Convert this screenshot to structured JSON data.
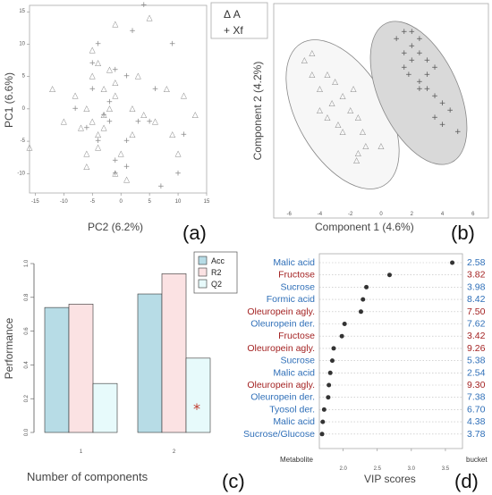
{
  "chart_data": [
    {
      "panel": "(a)",
      "type": "scatter",
      "xlabel": "PC2 (6.2%)",
      "ylabel": "PC1 (6.6%)",
      "xlim": [
        -16,
        15
      ],
      "ylim": [
        -13,
        16
      ],
      "xticks": [
        "-15",
        "-10",
        "-5",
        "0",
        "5",
        "10",
        "15"
      ],
      "yticks": [
        "15",
        "10",
        "5",
        "0",
        "-5",
        "-10"
      ],
      "legend": [
        "Δ A",
        "+ Xf"
      ],
      "series": [
        {
          "name": "A",
          "marker": "△",
          "points": [
            [
              -1,
              13
            ],
            [
              5,
              14
            ],
            [
              -5,
              9
            ],
            [
              -4,
              7
            ],
            [
              -5,
              5
            ],
            [
              -2,
              6
            ],
            [
              3,
              5
            ],
            [
              -3,
              3
            ],
            [
              -12,
              3
            ],
            [
              -8,
              2
            ],
            [
              -1,
              2
            ],
            [
              -6,
              0
            ],
            [
              -2,
              0
            ],
            [
              4,
              -1
            ],
            [
              -7,
              -3
            ],
            [
              -3,
              -3
            ],
            [
              2,
              -4
            ],
            [
              9,
              -4
            ],
            [
              -4,
              -6
            ],
            [
              -6,
              -7
            ],
            [
              0,
              -7
            ],
            [
              10,
              -7
            ],
            [
              -16,
              -6
            ],
            [
              -6,
              -9
            ],
            [
              -10,
              -2
            ],
            [
              -1,
              -10
            ],
            [
              1,
              -11
            ],
            [
              6,
              -2
            ],
            [
              11,
              2
            ],
            [
              -3,
              -1
            ],
            [
              13,
              -1
            ],
            [
              -4,
              -4
            ],
            [
              -5,
              -2
            ],
            [
              2,
              0
            ],
            [
              -1,
              4
            ],
            [
              8,
              3
            ]
          ]
        },
        {
          "name": "Xf",
          "marker": "+",
          "points": [
            [
              4,
              16
            ],
            [
              2,
              12
            ],
            [
              9,
              10
            ],
            [
              -4,
              10
            ],
            [
              -5,
              7
            ],
            [
              -1,
              6
            ],
            [
              1,
              5
            ],
            [
              -5,
              3
            ],
            [
              -2,
              1
            ],
            [
              -8,
              0
            ],
            [
              -3,
              -1
            ],
            [
              3,
              -2
            ],
            [
              5,
              -2
            ],
            [
              -6,
              -3
            ],
            [
              11,
              -4
            ],
            [
              1,
              -5
            ],
            [
              -1,
              -8
            ],
            [
              10,
              -10
            ],
            [
              7,
              -12
            ],
            [
              -1,
              -10
            ],
            [
              1,
              -9
            ],
            [
              -4,
              -5
            ],
            [
              6,
              3
            ],
            [
              -2,
              -2
            ]
          ]
        }
      ]
    },
    {
      "panel": "(b)",
      "type": "scatter",
      "xlabel": "Component 1 (4.6%)",
      "ylabel": "Component 2 (4.2%)",
      "xlim": [
        -7,
        7
      ],
      "ylim": [
        -8,
        7
      ],
      "xticks": [
        "-6",
        "-4",
        "-2",
        "0",
        "2",
        "4",
        "6"
      ],
      "series": [
        {
          "name": "A",
          "marker": "△",
          "points": [
            [
              -5,
              3
            ],
            [
              -4.5,
              2
            ],
            [
              -4,
              1
            ],
            [
              -3.5,
              2
            ],
            [
              -3,
              1.5
            ],
            [
              -3.2,
              0
            ],
            [
              -2.5,
              0.5
            ],
            [
              -2,
              -0.5
            ],
            [
              -1.8,
              1
            ],
            [
              -1.5,
              -1
            ],
            [
              -1.2,
              -2
            ],
            [
              -1,
              -3
            ],
            [
              -1.5,
              -3.5
            ],
            [
              -1.6,
              -4
            ],
            [
              -2.5,
              -2
            ],
            [
              -3.5,
              -1
            ],
            [
              -4,
              -0.5
            ],
            [
              -2.8,
              -1.5
            ],
            [
              0,
              -3
            ],
            [
              -4.5,
              3.5
            ]
          ]
        },
        {
          "name": "Xf",
          "marker": "+",
          "points": [
            [
              1,
              4.5
            ],
            [
              1.5,
              5
            ],
            [
              2,
              5
            ],
            [
              2.5,
              4.5
            ],
            [
              2,
              4
            ],
            [
              1.5,
              3.5
            ],
            [
              2.5,
              3.5
            ],
            [
              3,
              3
            ],
            [
              2,
              3
            ],
            [
              1.5,
              2.5
            ],
            [
              3,
              2
            ],
            [
              3.5,
              2.5
            ],
            [
              2.5,
              1.5
            ],
            [
              3,
              1
            ],
            [
              3.5,
              0.5
            ],
            [
              4,
              0
            ],
            [
              4.5,
              -0.5
            ],
            [
              3.5,
              -1
            ],
            [
              4,
              -1.5
            ],
            [
              5,
              -2
            ],
            [
              2.5,
              1
            ],
            [
              1.8,
              2
            ]
          ]
        }
      ]
    },
    {
      "panel": "(c)",
      "type": "bar",
      "xlabel": "Number of components",
      "ylabel": "Performance",
      "categories": [
        "1",
        "2"
      ],
      "ylim": [
        0,
        1
      ],
      "yticks": [
        "0.0",
        "0.2",
        "0.4",
        "0.6",
        "0.8",
        "1.0"
      ],
      "series": [
        {
          "name": "Acc",
          "values": [
            0.74,
            0.82
          ],
          "color": "#b7dce6"
        },
        {
          "name": "R2",
          "values": [
            0.76,
            0.94
          ],
          "color": "#fbe2e3"
        },
        {
          "name": "Q2",
          "values": [
            0.29,
            0.44
          ],
          "color": "#e7fafb"
        }
      ],
      "annotation": "*"
    },
    {
      "panel": "(d)",
      "type": "dot",
      "xlabel": "VIP scores",
      "left_header": "Metabolite",
      "right_header": "bucket",
      "xlim": [
        1.65,
        3.75
      ],
      "xticks": [
        "2.0",
        "2.5",
        "3.0",
        "3.5"
      ],
      "rows": [
        {
          "metabolite": "Malic acid",
          "bucket": "2.58",
          "vip": 3.6,
          "color": "#2f6fb8"
        },
        {
          "metabolite": "Fructose",
          "bucket": "3.82",
          "vip": 2.68,
          "color": "#a42323"
        },
        {
          "metabolite": "Sucrose",
          "bucket": "3.98",
          "vip": 2.34,
          "color": "#2f6fb8"
        },
        {
          "metabolite": "Formic acid",
          "bucket": "8.42",
          "vip": 2.29,
          "color": "#2f6fb8"
        },
        {
          "metabolite": "Oleuropein agly.",
          "bucket": "7.50",
          "vip": 2.26,
          "color": "#a42323"
        },
        {
          "metabolite": "Oleuropein der.",
          "bucket": "7.62",
          "vip": 2.02,
          "color": "#2f6fb8"
        },
        {
          "metabolite": "Fructose",
          "bucket": "3.42",
          "vip": 1.98,
          "color": "#a42323"
        },
        {
          "metabolite": "Oleuropein agly.",
          "bucket": "9.26",
          "vip": 1.86,
          "color": "#a42323"
        },
        {
          "metabolite": "Sucrose",
          "bucket": "5.38",
          "vip": 1.84,
          "color": "#2f6fb8"
        },
        {
          "metabolite": "Malic acid",
          "bucket": "2.54",
          "vip": 1.81,
          "color": "#2f6fb8"
        },
        {
          "metabolite": "Oleuropein agly.",
          "bucket": "9.30",
          "vip": 1.79,
          "color": "#a42323"
        },
        {
          "metabolite": "Oleuropein der.",
          "bucket": "7.38",
          "vip": 1.78,
          "color": "#2f6fb8"
        },
        {
          "metabolite": "Tyosol der.",
          "bucket": "6.70",
          "vip": 1.72,
          "color": "#2f6fb8"
        },
        {
          "metabolite": "Malic acid",
          "bucket": "4.38",
          "vip": 1.7,
          "color": "#2f6fb8"
        },
        {
          "metabolite": "Sucrose/Glucose",
          "bucket": "3.78",
          "vip": 1.69,
          "color": "#2f6fb8"
        }
      ]
    }
  ]
}
